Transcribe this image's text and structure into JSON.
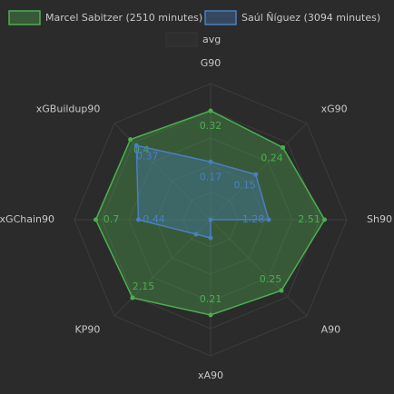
{
  "chart_data": {
    "type": "radar",
    "axes": [
      "G90",
      "xG90",
      "Sh90",
      "A90",
      "xA90",
      "KP90",
      "xGChain90",
      "xGBuildup90"
    ],
    "axis_max": [
      0.4,
      0.32,
      3.0,
      0.34,
      0.3,
      2.65,
      0.83,
      0.48
    ],
    "series": [
      {
        "name": "Marcel Sabitzer (2510 minutes)",
        "color": "#4caf50",
        "values": [
          0.32,
          0.24,
          2.51,
          0.25,
          0.21,
          2.15,
          0.7,
          0.4
        ]
      },
      {
        "name": "Saúl Ñíguez (3094 minutes)",
        "color": "#4a7fc0",
        "values": [
          0.17,
          0.15,
          1.28,
          0.0,
          0.04,
          0.4,
          0.44,
          0.37
        ]
      },
      {
        "name": "avg",
        "color": "#333333",
        "values": [
          null,
          null,
          null,
          null,
          null,
          null,
          null,
          null
        ]
      }
    ],
    "grid": true
  }
}
